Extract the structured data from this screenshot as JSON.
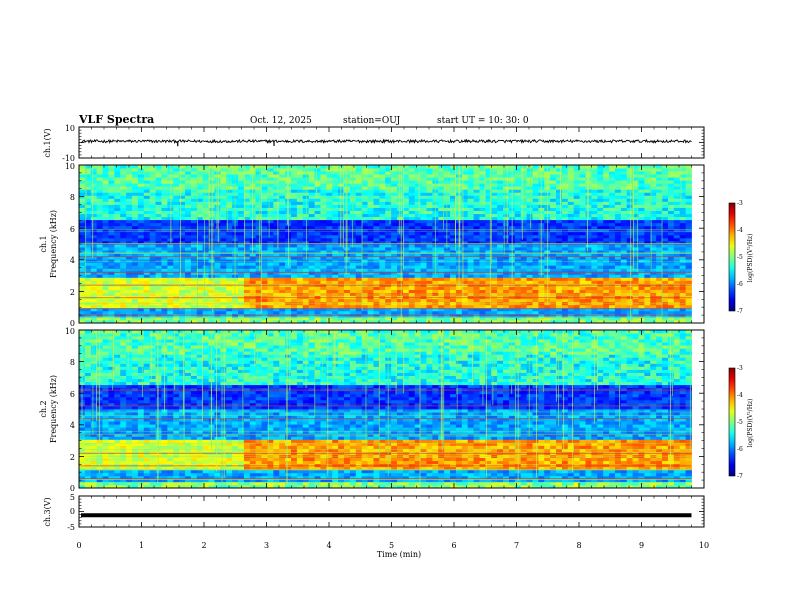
{
  "header": {
    "title": "VLF Spectra",
    "date": "Oct. 12, 2025",
    "station": "station=OUJ",
    "start": "start  UT =   10: 30: 0"
  },
  "chart_data": [
    {
      "type": "line",
      "panel": "ch1-waveform",
      "ylabel": "ch.1(V)",
      "ylim": [
        -10,
        10
      ],
      "yticks": [
        "10",
        "-10"
      ],
      "xlim": [
        0,
        10
      ],
      "baseline": 0.8,
      "spikes": [
        {
          "x": 1.58,
          "y": -2.4
        },
        {
          "x": 2.72,
          "y": 1.9
        },
        {
          "x": 3.12,
          "y": -2.2
        },
        {
          "x": 4.28,
          "y": 1.6
        },
        {
          "x": 7.56,
          "y": 1.5
        }
      ]
    },
    {
      "type": "heatmap",
      "panel": "ch1-spectrogram",
      "ylabel": "ch.1",
      "ylabel2": "Frequency (kHz)",
      "ylim": [
        0,
        10
      ],
      "yticks": [
        "0",
        "2",
        "4",
        "6",
        "8",
        "10"
      ],
      "xlim": [
        0,
        9.8
      ],
      "colorbar": {
        "label": "log(PSD)(V²/Hz)",
        "range": [
          -7,
          -3
        ],
        "ticks": [
          "-3",
          "-4",
          "-5",
          "-6",
          "-7"
        ]
      },
      "bright_band_khz": [
        1.0,
        2.8
      ],
      "red_lines_khz": [
        0.5,
        0.9,
        1.6,
        2.4,
        3.2,
        4.2,
        5.0
      ]
    },
    {
      "type": "heatmap",
      "panel": "ch2-spectrogram",
      "ylabel": "ch.2",
      "ylabel2": "Frequency (kHz)",
      "ylim": [
        0,
        10
      ],
      "yticks": [
        "0",
        "2",
        "4",
        "6",
        "8",
        "10"
      ],
      "xlim": [
        0,
        9.8
      ],
      "colorbar": {
        "label": "log(PSD)(V²/Hz)",
        "range": [
          -7,
          -3
        ],
        "ticks": [
          "-3",
          "-4",
          "-5",
          "-6",
          "-7"
        ]
      },
      "bright_band_khz": [
        1.2,
        3.0
      ],
      "red_lines_khz": [
        0.6,
        1.4,
        2.2,
        3.4,
        4.4,
        5.2,
        6.2
      ]
    },
    {
      "type": "line",
      "panel": "ch3-waveform",
      "ylabel": "ch.3(V)",
      "ylim": [
        -5,
        5
      ],
      "yticks": [
        "5",
        "0",
        "-5"
      ],
      "xlim": [
        0,
        9.8
      ],
      "constant_value": -1.2
    }
  ],
  "xaxis": {
    "label": "Time (min)",
    "range": [
      0,
      10
    ],
    "ticks": [
      "0",
      "1",
      "2",
      "3",
      "4",
      "5",
      "6",
      "7",
      "8",
      "9",
      "10"
    ]
  },
  "colors": {
    "axis": "#000000",
    "background": "#ffffff"
  }
}
